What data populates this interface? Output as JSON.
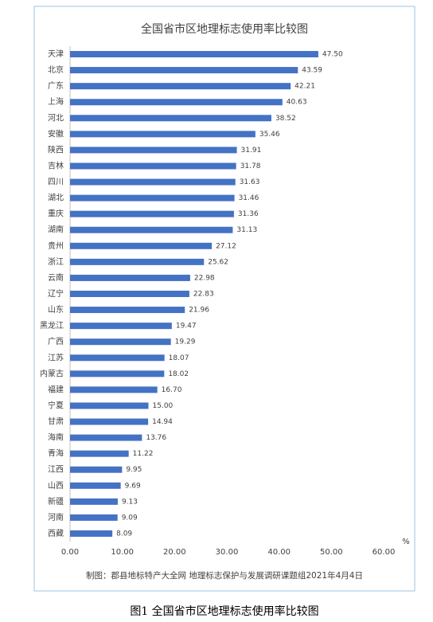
{
  "chart_data": {
    "type": "hbar",
    "title": "全国省市区地理标志使用率比较图",
    "categories": [
      "天津",
      "北京",
      "广东",
      "上海",
      "河北",
      "安徽",
      "陕西",
      "吉林",
      "四川",
      "湖北",
      "重庆",
      "湖南",
      "贵州",
      "浙江",
      "云南",
      "辽宁",
      "山东",
      "黑龙江",
      "广西",
      "江苏",
      "内蒙古",
      "福建",
      "宁夏",
      "甘肃",
      "海南",
      "青海",
      "江西",
      "山西",
      "新疆",
      "河南",
      "西藏"
    ],
    "values": [
      47.5,
      43.59,
      42.21,
      40.63,
      38.52,
      35.46,
      31.91,
      31.78,
      31.63,
      31.46,
      31.36,
      31.13,
      27.12,
      25.62,
      22.98,
      22.83,
      21.96,
      19.47,
      19.29,
      18.07,
      18.02,
      16.7,
      15,
      14.94,
      13.76,
      11.22,
      9.95,
      9.69,
      9.13,
      9.09,
      8.09
    ],
    "value_labels": [
      "47.50",
      "43.59",
      "42.21",
      "40.63",
      "38.52",
      "35.46",
      "31.91",
      "31.78",
      "31.63",
      "31.46",
      "31.36",
      "31.13",
      "27.12",
      "25.62",
      "22.98",
      "22.83",
      "21.96",
      "19.47",
      "19.29",
      "18.07",
      "18.02",
      "16.70",
      "15.00",
      "14.94",
      "13.76",
      "11.22",
      "9.95",
      "9.69",
      "9.13",
      "9.09",
      "8.09"
    ],
    "color": "#4472c4",
    "xlim": [
      0,
      60
    ],
    "xticks": [
      {
        "value": 0,
        "label": "0.00"
      },
      {
        "value": 10,
        "label": "10.00"
      },
      {
        "value": 20,
        "label": "20.00"
      },
      {
        "value": 30,
        "label": "30.00"
      },
      {
        "value": 40,
        "label": "40.00"
      },
      {
        "value": 50,
        "label": "50.00"
      },
      {
        "value": 60,
        "label": "60.00"
      }
    ],
    "x_unit": "%",
    "note": "制图：郡县地标特产大全网 地理标志保护与发展调研课题组2021年4月4日"
  },
  "caption": "图1  全国省市区地理标志使用率比较图"
}
